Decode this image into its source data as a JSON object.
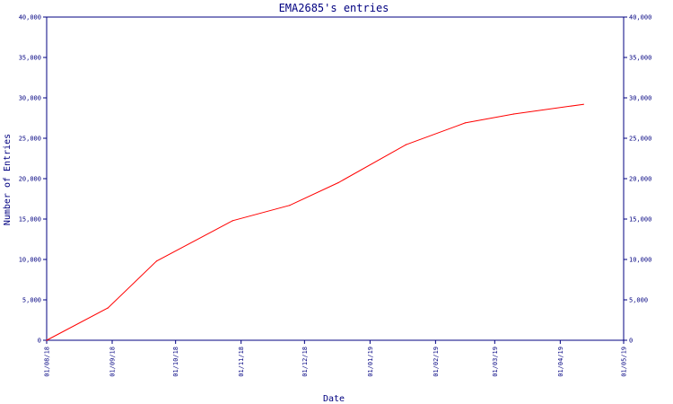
{
  "chart_data": {
    "type": "line",
    "title": "EMA2685's entries",
    "xlabel": "Date",
    "ylabel": "Number of Entries",
    "ylim": [
      0,
      40000
    ],
    "y_ticks": [
      "0",
      "5,000",
      "10,000",
      "15,000",
      "20,000",
      "25,000",
      "30,000",
      "35,000",
      "40,000"
    ],
    "y_tick_values": [
      0,
      5000,
      10000,
      15000,
      20000,
      25000,
      30000,
      35000,
      40000
    ],
    "x_range": [
      "2018-08-01",
      "2019-05-01"
    ],
    "x_ticks": [
      {
        "label": "01/08/18",
        "date": "2018-08-01"
      },
      {
        "label": "01/09/18",
        "date": "2018-09-01"
      },
      {
        "label": "01/10/18",
        "date": "2018-10-01"
      },
      {
        "label": "01/11/18",
        "date": "2018-11-01"
      },
      {
        "label": "01/12/18",
        "date": "2018-12-01"
      },
      {
        "label": "01/01/19",
        "date": "2019-01-01"
      },
      {
        "label": "01/02/19",
        "date": "2019-02-01"
      },
      {
        "label": "01/03/19",
        "date": "2019-03-01"
      },
      {
        "label": "01/04/19",
        "date": "2019-04-01"
      },
      {
        "label": "01/05/19",
        "date": "2019-05-01"
      }
    ],
    "series": [
      {
        "color": "#ff0000",
        "points": [
          {
            "x": "2018-08-01",
            "y": 0
          },
          {
            "x": "2018-08-30",
            "y": 4000
          },
          {
            "x": "2018-09-22",
            "y": 9800
          },
          {
            "x": "2018-10-28",
            "y": 14800
          },
          {
            "x": "2018-11-24",
            "y": 16700
          },
          {
            "x": "2018-12-17",
            "y": 19500
          },
          {
            "x": "2019-01-18",
            "y": 24200
          },
          {
            "x": "2019-02-15",
            "y": 26900
          },
          {
            "x": "2019-03-10",
            "y": 28000
          },
          {
            "x": "2019-04-12",
            "y": 29200
          }
        ]
      }
    ],
    "grid": false,
    "colors": {
      "axis": "#000080",
      "line": "#ff0000"
    }
  }
}
